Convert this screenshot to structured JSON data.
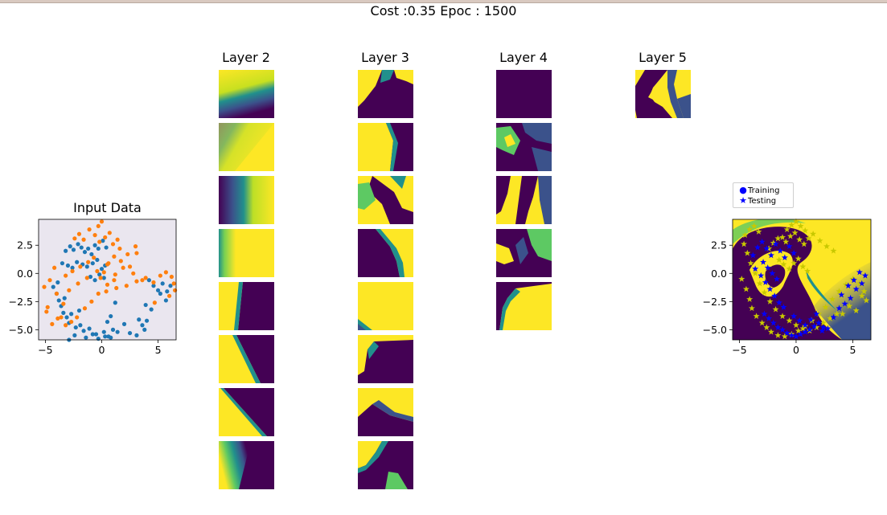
{
  "figure": {
    "title": "Cost :0.35 Epoc : 1500",
    "layer_titles": [
      "Layer 2",
      "Layer 3",
      "Layer 4",
      "Layer 5"
    ],
    "colormap": [
      "#440154",
      "#3b528b",
      "#21908c",
      "#5dc963",
      "#fde725"
    ]
  },
  "chart_data": [
    {
      "type": "scatter",
      "title": "Input Data",
      "xlim": [
        -5.6,
        6.6
      ],
      "ylim": [
        -5.9,
        4.8
      ],
      "xticks": [
        -5,
        0,
        5
      ],
      "yticks": [
        2.5,
        0.0,
        -2.5,
        -5.0
      ],
      "xtick_labels": [
        "−5",
        "0",
        "5"
      ],
      "ytick_labels": [
        "2.5",
        "0.0",
        "−2.5",
        "−5.0"
      ],
      "background": "#eae6ef",
      "series": [
        {
          "color": "#1f77b4",
          "x": [
            -3.2,
            -2.8,
            -2.5,
            -2.1,
            -1.8,
            -1.5,
            -1.2,
            -0.9,
            -0.6,
            -0.3,
            0.1,
            0.4,
            -3.5,
            -3.0,
            -2.6,
            -2.2,
            -1.7,
            -1.3,
            -0.8,
            -0.4,
            0.0,
            0.3,
            -1.0,
            -0.6,
            -0.2,
            0.2,
            -4.3,
            -4.0,
            -3.8,
            -3.6,
            -3.4,
            -3.1,
            -2.9,
            -2.3,
            -1.9,
            -1.6,
            -1.1,
            -0.5,
            0.2,
            0.6,
            1.0,
            0.5,
            0.8,
            1.2,
            -2.0,
            -2.7,
            -3.3,
            -3.9,
            4.2,
            4.6,
            5.0,
            5.4,
            5.8,
            6.1,
            3.9,
            4.4,
            5.2,
            5.7,
            3.3,
            3.6,
            4.0,
            3.8,
            3.1,
            2.5,
            2.0,
            1.4,
            0.8,
            0.3,
            -0.3,
            -0.8,
            -1.4,
            -2.4,
            -2.9
          ],
          "y": [
            2.0,
            2.4,
            2.1,
            2.6,
            2.3,
            1.9,
            2.2,
            1.7,
            2.5,
            2.2,
            2.9,
            2.3,
            0.9,
            0.7,
            0.5,
            1.0,
            0.8,
            0.6,
            0.9,
            1.2,
            0.4,
            0.7,
            -0.3,
            -0.6,
            -0.1,
            -0.4,
            -1.2,
            -1.8,
            -2.4,
            -2.9,
            -3.5,
            -3.9,
            -4.4,
            -4.8,
            -4.6,
            -5.1,
            -4.9,
            -5.4,
            -5.2,
            -5.6,
            -5.0,
            -4.3,
            -3.8,
            -2.6,
            -3.3,
            -3.6,
            -2.2,
            -0.8,
            -0.6,
            -1.1,
            -1.5,
            -0.9,
            -1.6,
            -1.1,
            -2.8,
            -3.2,
            -1.8,
            -2.4,
            -4.1,
            -4.6,
            -4.2,
            -5.0,
            -5.5,
            -5.3,
            -4.5,
            -5.2,
            -5.7,
            -5.6,
            -5.8,
            -5.4,
            -5.7,
            -5.5,
            -5.9
          ]
        },
        {
          "color": "#ff7f0e",
          "x": [
            -4.2,
            -4.6,
            -4.0,
            -4.8,
            -3.6,
            -3.2,
            -2.7,
            -2.2,
            -1.5,
            -0.9,
            -0.3,
            0.4,
            1.3,
            2.2,
            3.1,
            3.9,
            4.6,
            5.2,
            5.7,
            6.2,
            6.4,
            6.5,
            6.0,
            4.7,
            -5.1,
            -4.9,
            -4.4,
            -3.9,
            -3.4,
            -2.9,
            -2.1,
            -1.3,
            -0.4,
            0.5,
            1.2,
            1.9,
            2.8,
            3.6,
            -2.4,
            -2.0,
            -1.6,
            -1.1,
            -0.6,
            -0.2,
            0.3,
            0.7,
            1.0,
            1.4,
            0.0,
            -0.3,
            -0.7,
            -1.2,
            -1.9,
            -2.6,
            -3.2,
            0.6,
            1.1,
            1.7,
            2.5,
            3.1,
            1.6,
            2.3,
            3.0,
            1.1,
            0.5,
            0.2,
            -0.1
          ],
          "y": [
            0.5,
            -0.6,
            -1.8,
            -3.0,
            -3.9,
            -4.6,
            -4.3,
            -3.9,
            -3.1,
            -2.5,
            -1.8,
            -1.6,
            -1.3,
            -1.1,
            -0.7,
            -0.4,
            -0.8,
            -0.2,
            0.1,
            -0.3,
            -0.9,
            -1.5,
            -2.0,
            -2.6,
            -1.2,
            -3.4,
            -4.5,
            -4.0,
            -2.7,
            -1.5,
            -0.9,
            -0.4,
            0.2,
            0.8,
            -0.1,
            0.5,
            0.0,
            -0.6,
            3.1,
            3.5,
            3.0,
            3.9,
            3.4,
            2.8,
            3.2,
            3.6,
            2.6,
            3.0,
            4.6,
            4.2,
            1.4,
            1.0,
            0.6,
            0.2,
            -0.2,
            0.9,
            1.5,
            1.1,
            0.6,
            1.8,
            2.2,
            1.7,
            2.4,
            -0.6,
            -1.0,
            0.1,
            -0.4
          ]
        }
      ]
    },
    {
      "type": "scatter",
      "xlim": [
        -5.6,
        6.6
      ],
      "ylim": [
        -5.9,
        4.8
      ],
      "xticks": [
        -5,
        0,
        5
      ],
      "yticks": [
        2.5,
        0.0,
        -2.5,
        -5.0
      ],
      "xtick_labels": [
        "−5",
        "0",
        "5"
      ],
      "ytick_labels": [
        "2.5",
        "0.0",
        "−2.5",
        "−5.0"
      ],
      "legend": {
        "placement": "upper-left-outside",
        "entries": [
          "Training",
          "Testing"
        ]
      },
      "series": [
        {
          "name": "Training",
          "marker": "star",
          "color": "#c8c800",
          "x": [
            -4.6,
            -4.3,
            -4.0,
            -3.6,
            -3.2,
            -2.8,
            -2.3,
            -1.8,
            -1.2,
            -0.6,
            0.0,
            0.6,
            1.2,
            1.8,
            2.4,
            3.0,
            3.6,
            -4.8,
            -4.4,
            -4.1,
            -3.9,
            -3.5,
            -3.0,
            -2.6,
            -2.2,
            -1.6,
            -1.0,
            -0.4,
            0.2,
            0.8,
            1.4,
            2.0,
            2.6,
            3.2,
            3.8,
            4.4,
            5.0,
            5.6,
            6.0,
            6.2,
            -0.8,
            -0.4,
            0.0,
            0.4,
            0.8,
            -1.2,
            -0.9,
            -0.5,
            -0.1,
            0.3,
            0.7,
            1.1,
            1.5,
            2.1,
            2.7,
            3.3,
            -1.5,
            -1.1,
            -0.6,
            -0.2,
            0.2,
            0.6,
            1.0,
            -2.4,
            -2.0,
            -1.6,
            4.1,
            4.7,
            5.3,
            5.8,
            -4.5,
            -4.1,
            -3.7,
            -3.3
          ],
          "y": [
            2.6,
            1.8,
            0.9,
            0.0,
            -0.9,
            -1.7,
            -2.5,
            -3.2,
            -3.8,
            -4.2,
            -4.6,
            -4.9,
            -5.1,
            -4.8,
            -4.4,
            -4.0,
            -3.6,
            -0.5,
            -1.4,
            -2.3,
            -3.1,
            -3.8,
            -4.4,
            -4.8,
            -5.2,
            -5.5,
            -5.6,
            -5.4,
            -5.1,
            -4.7,
            -4.2,
            -3.6,
            -3.0,
            -2.3,
            -1.6,
            -1.0,
            -0.5,
            -0.9,
            -1.6,
            -2.4,
            3.9,
            4.3,
            4.6,
            4.2,
            3.8,
            3.2,
            2.8,
            3.3,
            3.6,
            3.0,
            2.6,
            3.1,
            3.5,
            2.9,
            2.4,
            2.0,
            1.2,
            0.8,
            0.4,
            0.9,
            1.3,
            0.6,
            0.2,
            2.2,
            2.7,
            3.1,
            -3.6,
            -2.9,
            -3.3,
            -2.0,
            3.4,
            3.9,
            4.2,
            3.7
          ]
        },
        {
          "name": "Testing",
          "marker": "star",
          "color": "#0000ff",
          "x": [
            -3.8,
            -3.4,
            -3.0,
            -2.6,
            -2.2,
            -1.8,
            -1.4,
            -1.0,
            -0.6,
            -0.2,
            -3.6,
            -3.1,
            -2.7,
            -2.3,
            -1.9,
            -1.5,
            -1.1,
            -2.8,
            -2.4,
            -2.0,
            -1.6,
            -1.2,
            -0.8,
            -0.4,
            0.0,
            0.4,
            0.8,
            1.2,
            1.6,
            2.0,
            2.4,
            -0.2,
            0.3,
            0.8,
            1.3,
            1.8,
            2.3,
            2.8,
            3.3,
            3.8,
            4.3,
            4.8,
            5.3,
            5.8,
            6.1,
            4.0,
            4.6,
            5.1,
            5.6,
            -2.9,
            -2.5,
            -2.1,
            -1.7
          ],
          "y": [
            1.6,
            2.3,
            2.8,
            2.2,
            1.6,
            2.6,
            2.0,
            1.4,
            2.4,
            1.8,
            0.4,
            -0.2,
            -0.8,
            -1.4,
            -2.0,
            -2.6,
            -3.0,
            -3.6,
            -4.0,
            -4.4,
            -4.8,
            -5.0,
            -5.3,
            -5.5,
            -5.6,
            -5.4,
            -5.2,
            -5.0,
            -4.7,
            -4.4,
            -4.8,
            -3.8,
            -4.2,
            -4.6,
            -4.1,
            -3.6,
            -5.1,
            -4.9,
            -3.9,
            -3.1,
            -2.7,
            -2.2,
            -1.4,
            -0.9,
            -0.2,
            -1.9,
            -1.1,
            -0.6,
            0.1,
            1.0,
            0.5,
            0.0,
            -0.5
          ]
        }
      ]
    }
  ]
}
